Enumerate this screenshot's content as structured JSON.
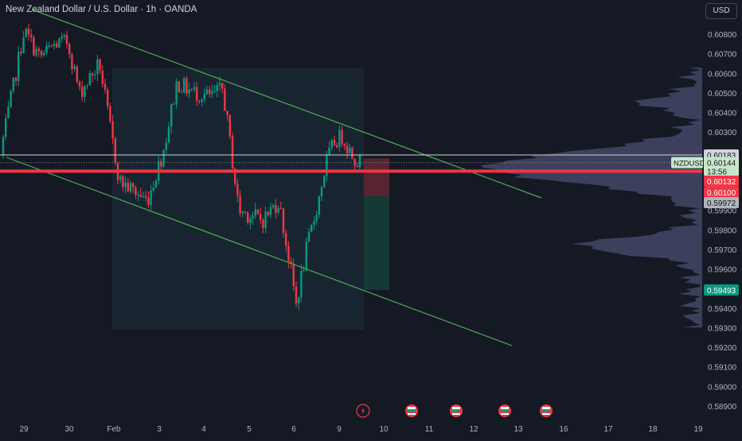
{
  "header": {
    "title": "New Zealand Dollar / U.S. Dollar · 1h · OANDA",
    "currency_label": "USD"
  },
  "price_axis": {
    "ticks": [
      "0.60800",
      "0.60700",
      "0.60600",
      "0.60500",
      "0.60400",
      "0.60300",
      "0.60200",
      "0.60100",
      "0.60000",
      "0.59900",
      "0.59800",
      "0.59700",
      "0.59600",
      "0.59500",
      "0.59400",
      "0.59300",
      "0.59200",
      "0.59100",
      "0.59000",
      "0.58900"
    ]
  },
  "time_axis": {
    "labels": [
      "29",
      "30",
      "Feb",
      "3",
      "4",
      "5",
      "6",
      "9",
      "10",
      "11",
      "12",
      "13",
      "16",
      "17",
      "18",
      "19"
    ]
  },
  "price_labels": {
    "white_line": "0.60183",
    "symbol_tag": "NZDUSD",
    "last_price": "0.60144",
    "countdown": "13:56",
    "stop_level": "0.60132",
    "key_level": "0.60100",
    "entry_level": "0.59972",
    "target_level": "0.59493"
  },
  "events": [
    {
      "icon": "flash-icon"
    },
    {
      "icon": "flag-icon"
    },
    {
      "icon": "flag-icon"
    },
    {
      "icon": "flag-icon"
    },
    {
      "icon": "flag-icon"
    }
  ],
  "colors": {
    "background": "#151924",
    "bull": "#089981",
    "bear": "#f23645",
    "channel": "#4caf50",
    "key_line": "#f23645",
    "volume_profile": "#434866"
  },
  "chart_data": {
    "type": "candlestick",
    "symbol": "NZDUSD",
    "timeframe": "1h",
    "source": "OANDA",
    "ylim": [
      0.5885,
      0.609
    ],
    "last_price": 0.60144,
    "horizontal_lines": [
      0.60183,
      0.601
    ],
    "position": {
      "entry": 0.59972,
      "stop": 0.60132,
      "target": 0.59493
    }
  }
}
